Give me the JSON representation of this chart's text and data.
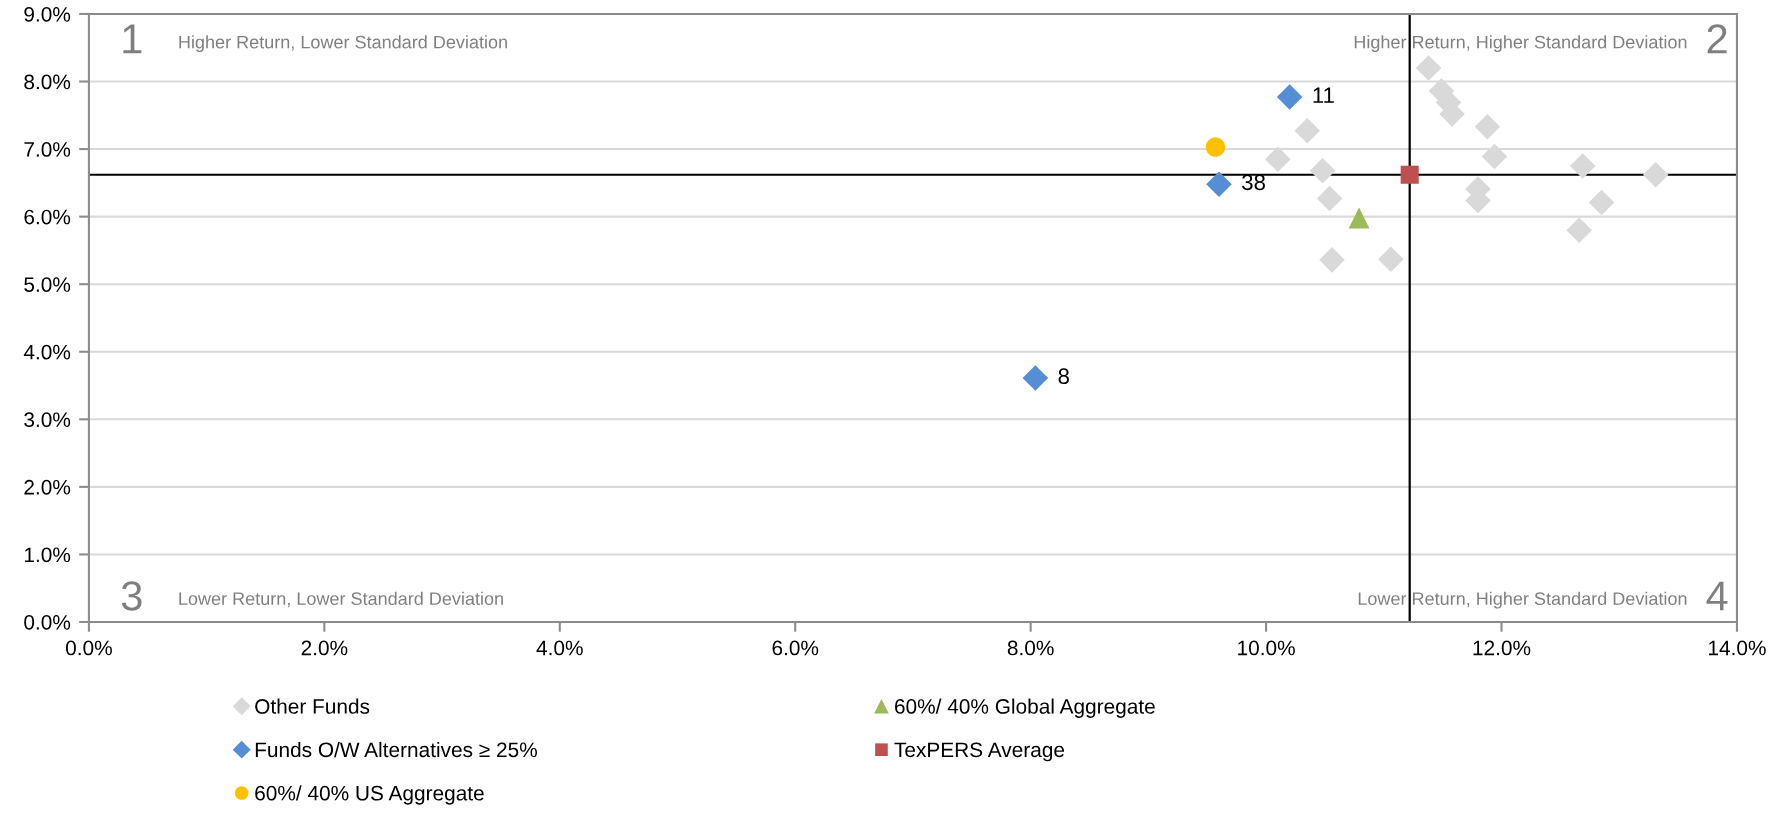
{
  "chart_data": {
    "type": "scatter",
    "xlim": [
      0,
      14
    ],
    "ylim": [
      0,
      9
    ],
    "xticks": [
      {
        "value": 0,
        "label": "0.0%"
      },
      {
        "value": 2,
        "label": "2.0%"
      },
      {
        "value": 4,
        "label": "4.0%"
      },
      {
        "value": 6,
        "label": "6.0%"
      },
      {
        "value": 8,
        "label": "8.0%"
      },
      {
        "value": 10,
        "label": "10.0%"
      },
      {
        "value": 12,
        "label": "12.0%"
      },
      {
        "value": 14,
        "label": "14.0%"
      }
    ],
    "yticks": [
      {
        "value": 0,
        "label": "0.0%"
      },
      {
        "value": 1,
        "label": "1.0%"
      },
      {
        "value": 2,
        "label": "2.0%"
      },
      {
        "value": 3,
        "label": "3.0%"
      },
      {
        "value": 4,
        "label": "4.0%"
      },
      {
        "value": 5,
        "label": "5.0%"
      },
      {
        "value": 6,
        "label": "6.0%"
      },
      {
        "value": 7,
        "label": "7.0%"
      },
      {
        "value": 8,
        "label": "8.0%"
      },
      {
        "value": 9,
        "label": "9.0%"
      }
    ],
    "grid": "y",
    "legend": "bottom",
    "series": [
      {
        "name": "Other Funds",
        "color": "#d9d9d9",
        "marker": "diamond",
        "x": [
          11.38,
          11.49,
          11.55,
          11.58,
          11.88,
          11.94,
          10.35,
          10.1,
          10.48,
          10.54,
          10.56,
          11.06,
          11.8,
          11.8,
          12.69,
          13.31,
          12.85,
          12.66
        ],
        "values": [
          8.2,
          7.86,
          7.69,
          7.52,
          7.33,
          6.89,
          7.27,
          6.85,
          6.68,
          6.27,
          5.36,
          5.37,
          6.41,
          6.24,
          6.75,
          6.62,
          6.21,
          5.8
        ]
      },
      {
        "name": "60%/ 40% Global Aggregate",
        "color": "#9bbb59",
        "marker": "triangle",
        "x": [
          10.79
        ],
        "values": [
          5.98
        ]
      },
      {
        "name": "Funds O/W Alternatives ≥ 25%",
        "color": "#558ed5",
        "marker": "diamond",
        "x": [
          10.2,
          9.6,
          8.04
        ],
        "values": [
          7.77,
          6.48,
          3.61
        ]
      },
      {
        "name": "TexPERS Average",
        "color": "#c0504d",
        "marker": "square",
        "x": [
          11.22
        ],
        "values": [
          6.62
        ]
      },
      {
        "name": "60%/ 40% US Aggregate",
        "color": "#ffc000",
        "marker": "circle",
        "x": [
          9.57
        ],
        "values": [
          7.03
        ]
      }
    ],
    "ref_lines": [
      {
        "axis": "x",
        "value": 11.22,
        "color": "#000000"
      },
      {
        "axis": "y",
        "value": 6.62,
        "color": "#000000"
      }
    ],
    "annotations": [
      "1",
      "Higher Return, Lower Standard Deviation",
      "Higher Return, Higher Standard Deviation",
      "2",
      "3",
      "Lower Return, Lower Standard Deviation",
      "Lower Return, Higher Standard Deviation",
      "4",
      {
        "text": "11",
        "x": 10.2,
        "y": 7.77
      },
      {
        "text": "38",
        "x": 9.6,
        "y": 6.48
      },
      {
        "text": "8",
        "x": 8.04,
        "y": 3.61
      }
    ]
  }
}
